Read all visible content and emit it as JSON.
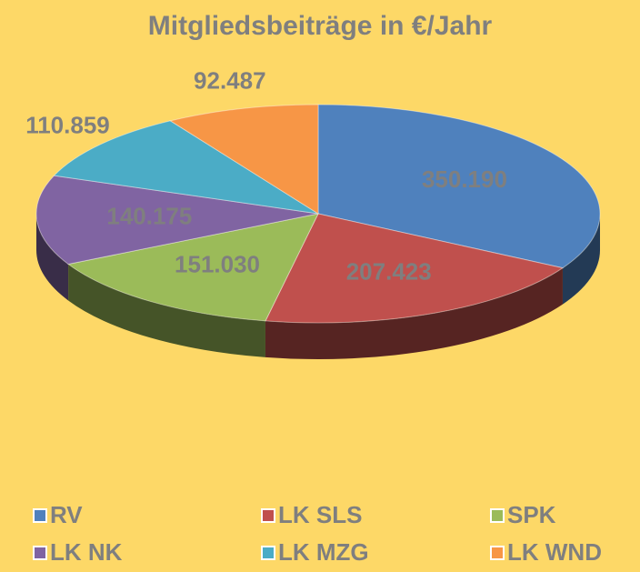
{
  "chart_data": {
    "type": "pie3d",
    "title": "Mitgliedsbeiträge in €/Jahr",
    "categories": [
      "RV",
      "LK SLS",
      "SPK",
      "LK NK",
      "LK MZG",
      "LK WND"
    ],
    "values": [
      350190,
      207423,
      151030,
      140175,
      110859,
      92487
    ],
    "value_labels": [
      "350.190",
      "207.423",
      "151.030",
      "140.175",
      "110.859",
      "92.487"
    ],
    "colors": [
      "#4f81bd",
      "#c0504d",
      "#9bbb59",
      "#8064a2",
      "#4bacc6",
      "#f79646"
    ],
    "legend": "bottom"
  }
}
